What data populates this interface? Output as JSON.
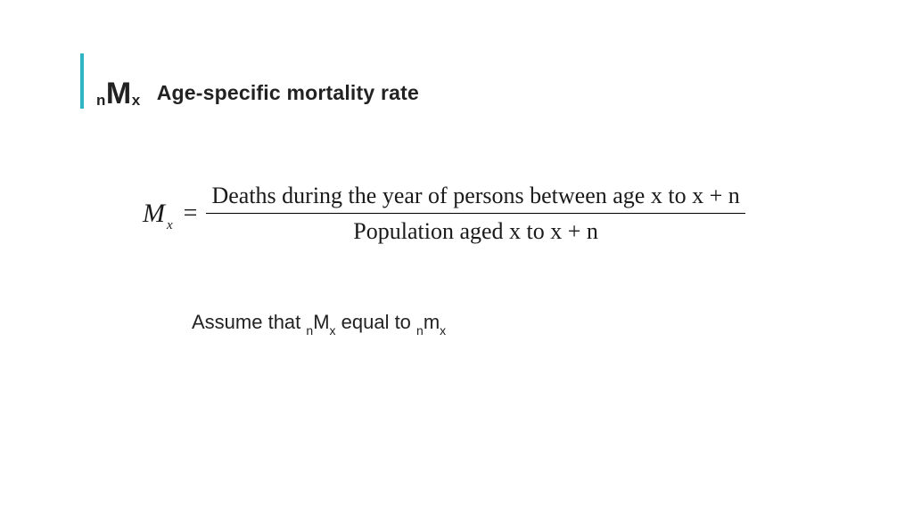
{
  "colors": {
    "accent": "#2fb5c4",
    "text": "#1a1a1a",
    "background": "#ffffff",
    "rule": "#000000"
  },
  "typography": {
    "title_fontsize_pt": 23,
    "title_symbol_large_pt": 34,
    "title_symbol_sub_pt": 17,
    "formula_fontsize_pt": 26,
    "body_fontsize_pt": 22,
    "title_font": "Segoe UI / Arial, bold",
    "formula_font": "Times New Roman"
  },
  "title": {
    "symbol_pre_sub": "n",
    "symbol_main": "M",
    "symbol_post_sub": "x",
    "text": "Age-specific mortality rate"
  },
  "formula": {
    "lhs_main": "M",
    "lhs_sub": "x",
    "equals": "=",
    "numerator": "Deaths during  the year of persons between age x to x + n",
    "denominator": "Population  aged x to x + n"
  },
  "assumption": {
    "pre": "Assume that ",
    "t1_sub1": "n",
    "t1_main": "M",
    "t1_sub2": "x",
    "mid": " equal to ",
    "t2_sub1": "n",
    "t2_main": "m",
    "t2_sub2": "x"
  }
}
